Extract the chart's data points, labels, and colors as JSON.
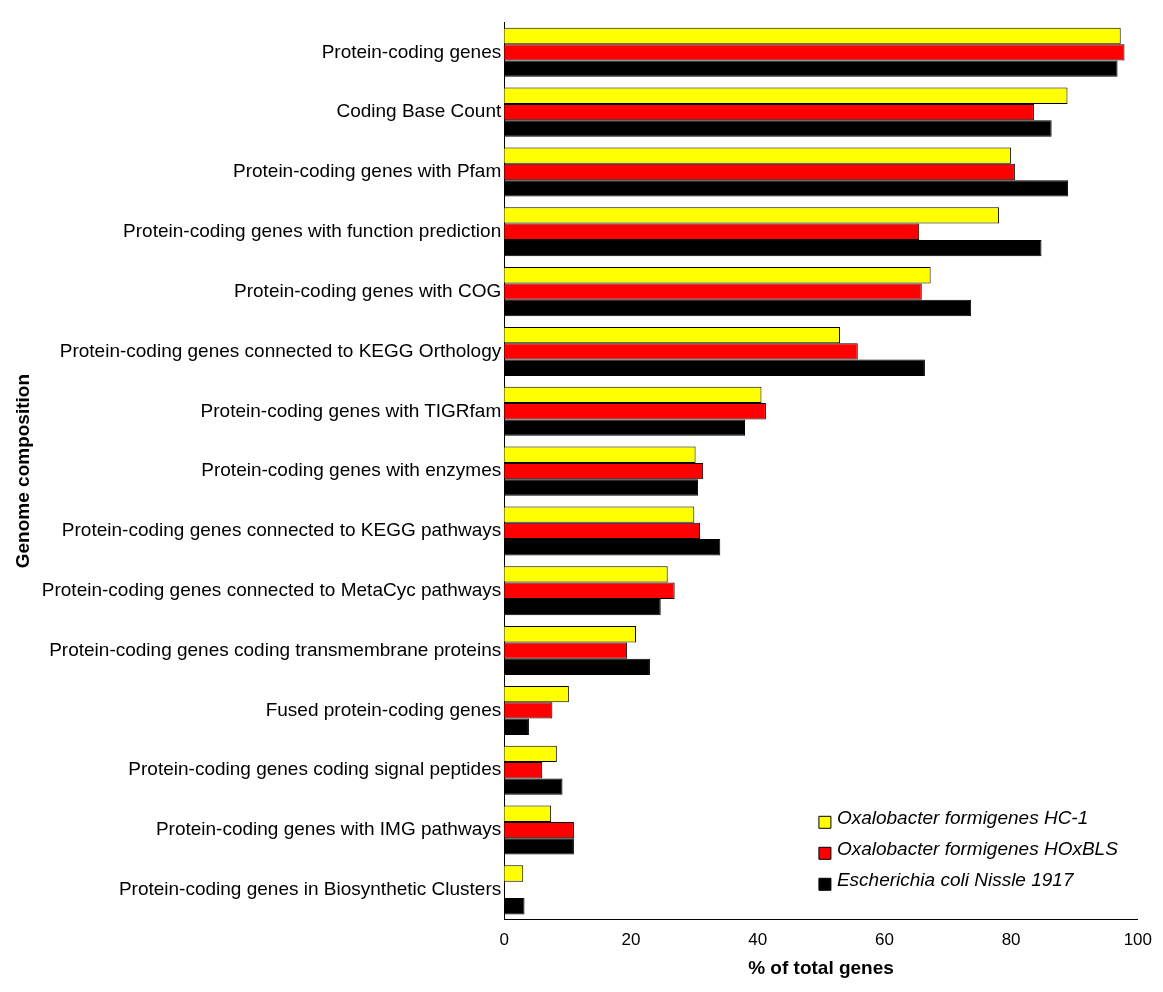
{
  "chart_data": {
    "type": "bar",
    "orientation": "horizontal",
    "xlabel": "% of total genes",
    "ylabel": "Genome composition",
    "categories": [
      "Protein-coding genes",
      "Coding Base Count",
      "Protein-coding genes with Pfam",
      "Protein-coding genes with function prediction",
      "Protein-coding genes with COG",
      "Protein-coding genes connected to KEGG Orthology",
      "Protein-coding genes with TIGRfam",
      "Protein-coding genes with enzymes",
      "Protein-coding genes connected to KEGG pathways",
      "Protein-coding genes connected to MetaCyc pathways",
      "Protein-coding genes coding transmembrane proteins",
      "Fused protein-coding genes",
      "Protein-coding genes coding signal peptides",
      "Protein-coding genes with IMG pathways",
      "Protein-coding genes in Biosynthetic Clusters"
    ],
    "series": [
      {
        "name": "Oxalobacter formigenes HC-1",
        "color": "#ffff00",
        "values": [
          97.3,
          88.9,
          80.0,
          78.1,
          67.3,
          53.0,
          40.6,
          30.2,
          30.0,
          25.8,
          20.8,
          10.2,
          8.3,
          7.4,
          3.0
        ]
      },
      {
        "name": "Oxalobacter formigenes HOxBLS",
        "color": "#ff0000",
        "values": [
          97.9,
          83.6,
          80.6,
          65.5,
          65.9,
          55.8,
          41.3,
          31.4,
          30.9,
          26.9,
          19.4,
          7.6,
          6.0,
          11.0,
          null
        ]
      },
      {
        "name": "Escherichia coli Nissle 1917",
        "color": "#000000",
        "values": [
          96.8,
          86.4,
          89.0,
          84.8,
          73.7,
          66.4,
          38.0,
          30.6,
          34.1,
          24.7,
          23.0,
          3.9,
          9.2,
          11.0,
          3.2
        ]
      }
    ],
    "xlim": [
      0,
      100
    ],
    "xticks": [
      0,
      20,
      40,
      60,
      80,
      100
    ],
    "grid": false,
    "legend": "bottom right"
  }
}
